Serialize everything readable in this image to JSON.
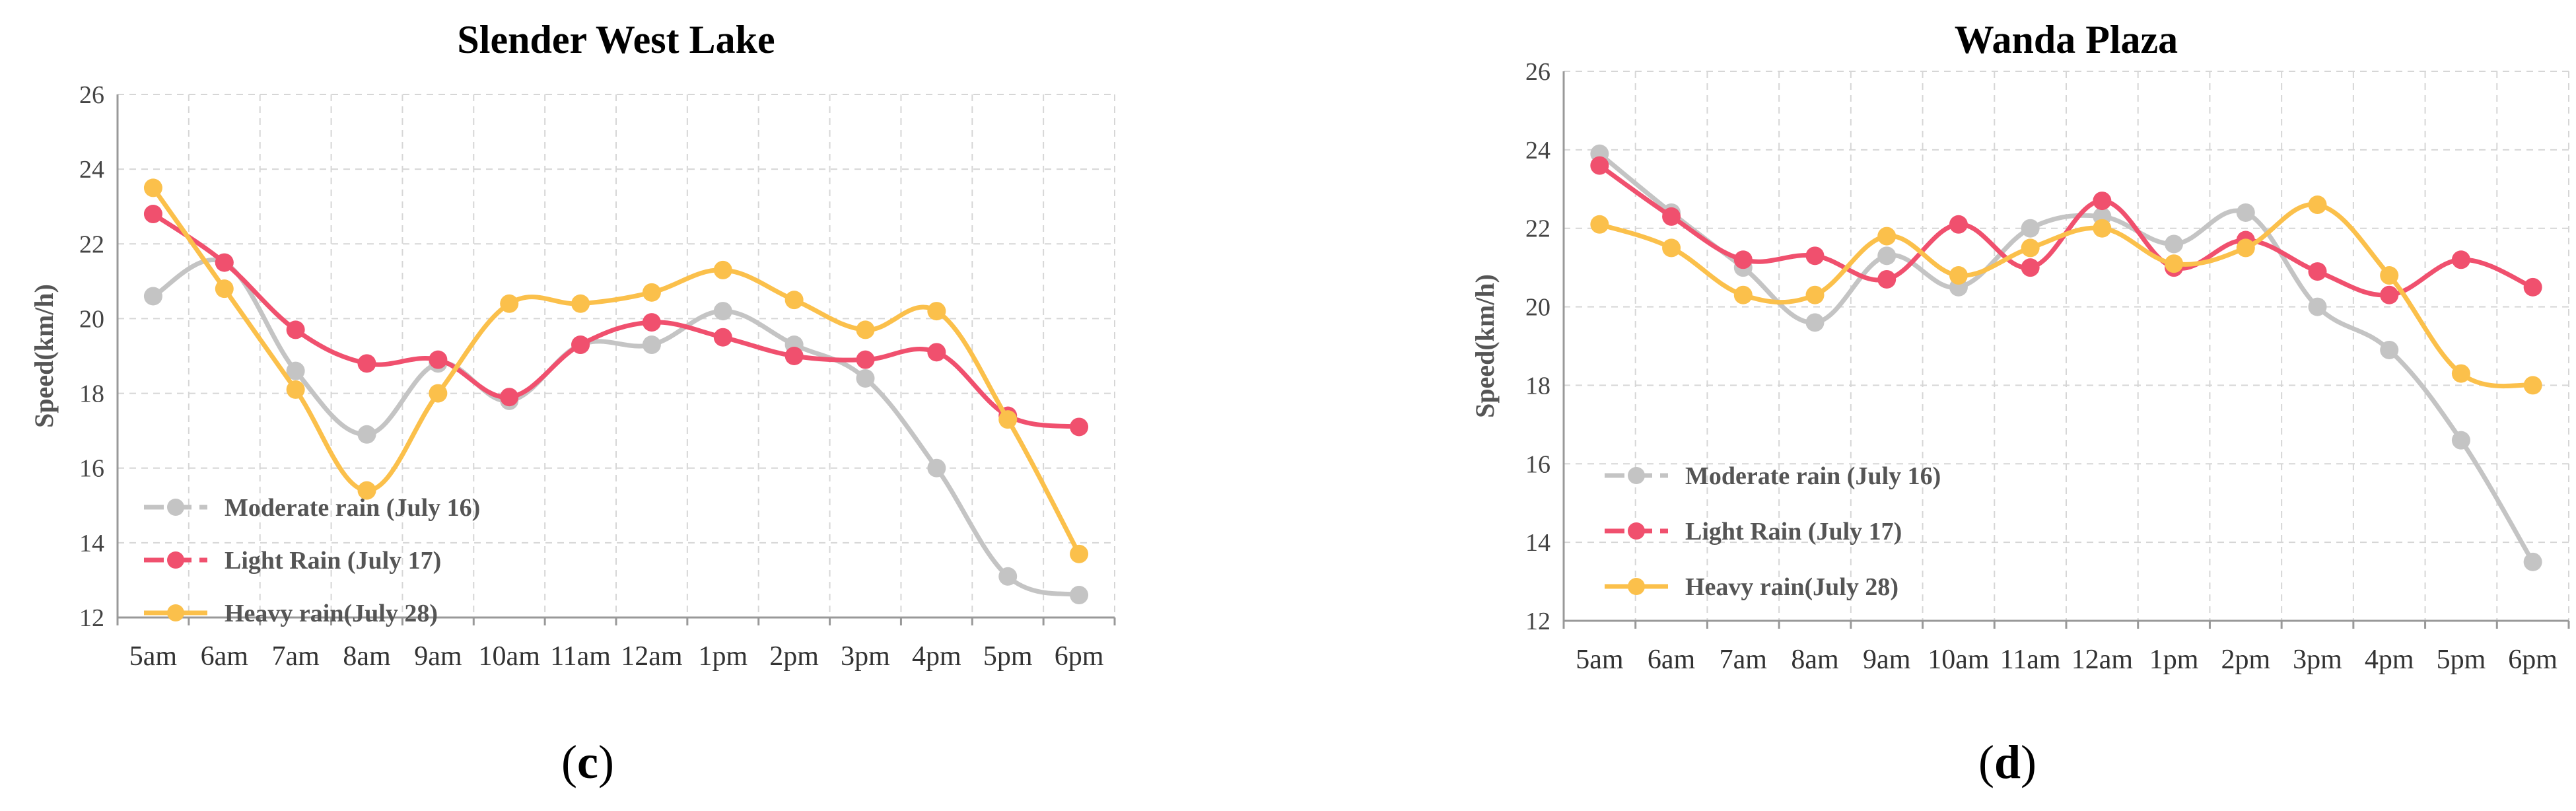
{
  "chart_data": [
    {
      "type": "line",
      "title": "Slender West Lake",
      "ylabel": "Speed(km/h)",
      "xlabel": "",
      "categories": [
        "5am",
        "6am",
        "7am",
        "8am",
        "9am",
        "10am",
        "11am",
        "12am",
        "1pm",
        "2pm",
        "3pm",
        "4pm",
        "5pm",
        "6pm"
      ],
      "ylim": [
        12,
        26
      ],
      "yticks": [
        "12",
        "14",
        "16",
        "18",
        "20",
        "22",
        "24",
        "26"
      ],
      "caption_open": "(",
      "caption_letter": "c",
      "caption_close": ")",
      "series": [
        {
          "name": "Moderate rain (July 16)",
          "color": "#c4c4c4",
          "values": [
            20.6,
            21.5,
            18.6,
            16.9,
            18.8,
            17.8,
            19.3,
            19.3,
            20.2,
            19.3,
            18.4,
            16.0,
            13.1,
            12.6
          ]
        },
        {
          "name": "Light Rain (July 17)",
          "color": "#f0506e",
          "values": [
            22.8,
            21.5,
            19.7,
            18.8,
            18.9,
            17.9,
            19.3,
            19.9,
            19.5,
            19.0,
            18.9,
            19.1,
            17.4,
            17.1
          ]
        },
        {
          "name": "Heavy rain(July 28)",
          "color": "#fbc04b",
          "values": [
            23.5,
            20.8,
            18.1,
            15.4,
            18.0,
            20.4,
            20.4,
            20.7,
            21.3,
            20.5,
            19.7,
            20.2,
            17.3,
            13.7
          ]
        }
      ]
    },
    {
      "type": "line",
      "title": "Wanda Plaza",
      "ylabel": "Speed(km/h)",
      "xlabel": "",
      "categories": [
        "5am",
        "6am",
        "7am",
        "8am",
        "9am",
        "10am",
        "11am",
        "12am",
        "1pm",
        "2pm",
        "3pm",
        "4pm",
        "5pm",
        "6pm"
      ],
      "ylim": [
        12,
        26
      ],
      "yticks": [
        "12",
        "14",
        "16",
        "18",
        "20",
        "22",
        "24",
        "26"
      ],
      "caption_open": "(",
      "caption_letter": "d",
      "caption_close": ")",
      "series": [
        {
          "name": "Moderate rain (July 16)",
          "color": "#c4c4c4",
          "values": [
            23.9,
            22.4,
            21.0,
            19.6,
            21.3,
            20.5,
            22.0,
            22.3,
            21.6,
            22.4,
            20.0,
            18.9,
            16.6,
            13.5
          ]
        },
        {
          "name": "Light Rain (July 17)",
          "color": "#f0506e",
          "values": [
            23.6,
            22.3,
            21.2,
            21.3,
            20.7,
            22.1,
            21.0,
            22.7,
            21.0,
            21.7,
            20.9,
            20.3,
            21.2,
            20.5
          ]
        },
        {
          "name": "Heavy rain(July 28)",
          "color": "#fbc04b",
          "values": [
            22.1,
            21.5,
            20.3,
            20.3,
            21.8,
            20.8,
            21.5,
            22.0,
            21.1,
            21.5,
            22.6,
            20.8,
            18.3,
            18.0
          ]
        }
      ]
    }
  ]
}
